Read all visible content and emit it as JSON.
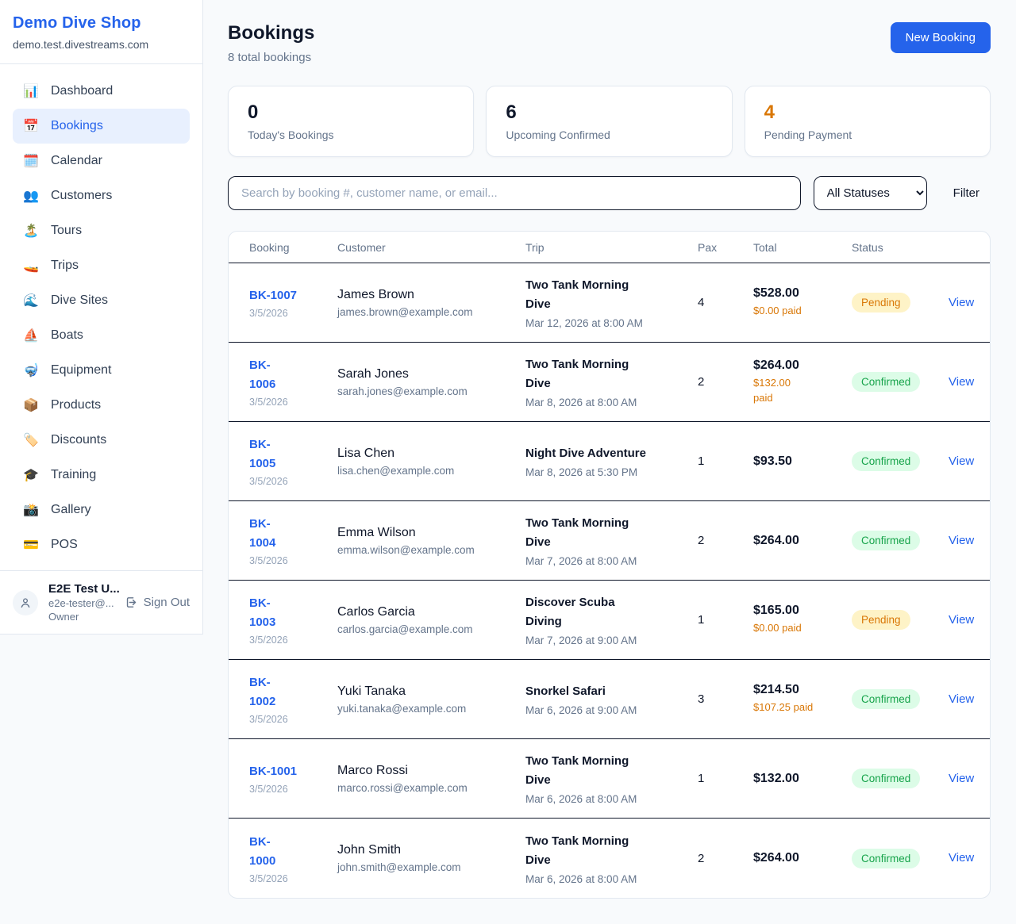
{
  "colors": {
    "brand_blue": "#2563eb",
    "accent_orange": "#d97706",
    "pending_bg": "#fef3c7",
    "pending_text": "#d97706",
    "confirmed_bg": "#dcfce7",
    "confirmed_text": "#16a34a",
    "row_divider": "#0f172a",
    "card_border": "#e2e8f0"
  },
  "sidebar": {
    "title": "Demo Dive Shop",
    "domain": "demo.test.divestreams.com",
    "items": [
      {
        "icon": "📊",
        "label": "Dashboard",
        "active": false
      },
      {
        "icon": "📅",
        "label": "Bookings",
        "active": true
      },
      {
        "icon": "🗓️",
        "label": "Calendar",
        "active": false
      },
      {
        "icon": "👥",
        "label": "Customers",
        "active": false
      },
      {
        "icon": "🏝️",
        "label": "Tours",
        "active": false
      },
      {
        "icon": "🚤",
        "label": "Trips",
        "active": false
      },
      {
        "icon": "🌊",
        "label": "Dive Sites",
        "active": false
      },
      {
        "icon": "⛵",
        "label": "Boats",
        "active": false
      },
      {
        "icon": "🤿",
        "label": "Equipment",
        "active": false
      },
      {
        "icon": "📦",
        "label": "Products",
        "active": false
      },
      {
        "icon": "🏷️",
        "label": "Discounts",
        "active": false
      },
      {
        "icon": "🎓",
        "label": "Training",
        "active": false
      },
      {
        "icon": "📸",
        "label": "Gallery",
        "active": false
      },
      {
        "icon": "💳",
        "label": "POS",
        "active": false
      }
    ],
    "user": {
      "name": "E2E Test U...",
      "email": "e2e-tester@...",
      "role": "Owner",
      "sign_out": "Sign Out"
    }
  },
  "header": {
    "title": "Bookings",
    "subtitle": "8 total bookings",
    "new_booking_label": "New Booking"
  },
  "stats": [
    {
      "value": "0",
      "label": "Today's Bookings",
      "accent": false
    },
    {
      "value": "6",
      "label": "Upcoming Confirmed",
      "accent": false
    },
    {
      "value": "4",
      "label": "Pending Payment",
      "accent": true
    }
  ],
  "controls": {
    "search_placeholder": "Search by booking #, customer name, or email...",
    "status_filter_value": "All Statuses",
    "filter_label": "Filter"
  },
  "table": {
    "headers": [
      "Booking",
      "Customer",
      "Trip",
      "Pax",
      "Total",
      "Status",
      ""
    ],
    "view_label": "View",
    "rows": [
      {
        "id": "BK-1007",
        "date": "3/5/2026",
        "customer": "James Brown",
        "email": "james.brown@example.com",
        "trip": "Two Tank Morning\nDive",
        "trip_date": "Mar 12, 2026 at 8:00 AM",
        "pax": "4",
        "total": "$528.00",
        "paid": "$0.00 paid",
        "status": "Pending",
        "status_type": "pending"
      },
      {
        "id": "BK-\n1006",
        "date": "3/5/2026",
        "customer": "Sarah Jones",
        "email": "sarah.jones@example.com",
        "trip": "Two Tank Morning\nDive",
        "trip_date": "Mar 8, 2026 at 8:00 AM",
        "pax": "2",
        "total": "$264.00",
        "paid": "$132.00\npaid",
        "status": "Confirmed",
        "status_type": "confirmed"
      },
      {
        "id": "BK-\n1005",
        "date": "3/5/2026",
        "customer": "Lisa Chen",
        "email": "lisa.chen@example.com",
        "trip": "Night Dive Adventure",
        "trip_date": "Mar 8, 2026 at 5:30 PM",
        "pax": "1",
        "total": "$93.50",
        "paid": "",
        "status": "Confirmed",
        "status_type": "confirmed"
      },
      {
        "id": "BK-\n1004",
        "date": "3/5/2026",
        "customer": "Emma Wilson",
        "email": "emma.wilson@example.com",
        "trip": "Two Tank Morning\nDive",
        "trip_date": "Mar 7, 2026 at 8:00 AM",
        "pax": "2",
        "total": "$264.00",
        "paid": "",
        "status": "Confirmed",
        "status_type": "confirmed"
      },
      {
        "id": "BK-\n1003",
        "date": "3/5/2026",
        "customer": "Carlos Garcia",
        "email": "carlos.garcia@example.com",
        "trip": "Discover Scuba\nDiving",
        "trip_date": "Mar 7, 2026 at 9:00 AM",
        "pax": "1",
        "total": "$165.00",
        "paid": "$0.00 paid",
        "status": "Pending",
        "status_type": "pending"
      },
      {
        "id": "BK-\n1002",
        "date": "3/5/2026",
        "customer": "Yuki Tanaka",
        "email": "yuki.tanaka@example.com",
        "trip": "Snorkel Safari",
        "trip_date": "Mar 6, 2026 at 9:00 AM",
        "pax": "3",
        "total": "$214.50",
        "paid": "$107.25 paid",
        "status": "Confirmed",
        "status_type": "confirmed"
      },
      {
        "id": "BK-1001",
        "date": "3/5/2026",
        "customer": "Marco Rossi",
        "email": "marco.rossi@example.com",
        "trip": "Two Tank Morning\nDive",
        "trip_date": "Mar 6, 2026 at 8:00 AM",
        "pax": "1",
        "total": "$132.00",
        "paid": "",
        "status": "Confirmed",
        "status_type": "confirmed"
      },
      {
        "id": "BK-\n1000",
        "date": "3/5/2026",
        "customer": "John Smith",
        "email": "john.smith@example.com",
        "trip": "Two Tank Morning\nDive",
        "trip_date": "Mar 6, 2026 at 8:00 AM",
        "pax": "2",
        "total": "$264.00",
        "paid": "",
        "status": "Confirmed",
        "status_type": "confirmed"
      }
    ]
  }
}
